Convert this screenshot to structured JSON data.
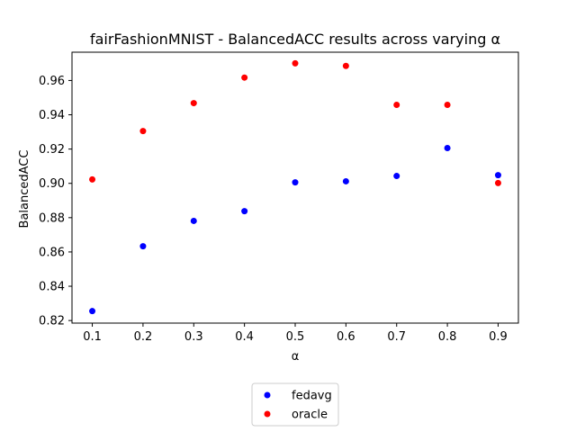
{
  "chart_data": {
    "type": "scatter",
    "title": "fairFashionMNIST - BalancedACC results across varying α",
    "xlabel": "α",
    "ylabel": "BalancedACC",
    "xlim": [
      0.06,
      0.94
    ],
    "ylim": [
      0.8185,
      0.9765
    ],
    "x_ticks": [
      "0.1",
      "0.2",
      "0.3",
      "0.4",
      "0.5",
      "0.6",
      "0.7",
      "0.8",
      "0.9"
    ],
    "y_ticks": [
      "0.82",
      "0.84",
      "0.86",
      "0.88",
      "0.90",
      "0.92",
      "0.94",
      "0.96"
    ],
    "x": [
      0.1,
      0.2,
      0.3,
      0.4,
      0.5,
      0.6,
      0.7,
      0.8,
      0.9
    ],
    "series": [
      {
        "name": "fedavg",
        "color": "#0000ff",
        "values": [
          0.8255,
          0.8633,
          0.8781,
          0.8838,
          0.9006,
          0.9012,
          0.9043,
          0.9206,
          0.9048
        ]
      },
      {
        "name": "oracle",
        "color": "#ff0000",
        "values": [
          0.9023,
          0.9305,
          0.9468,
          0.9617,
          0.97,
          0.9685,
          0.9458,
          0.9458,
          0.9002
        ]
      }
    ],
    "grid": false,
    "legend_position": "bottom-center"
  }
}
